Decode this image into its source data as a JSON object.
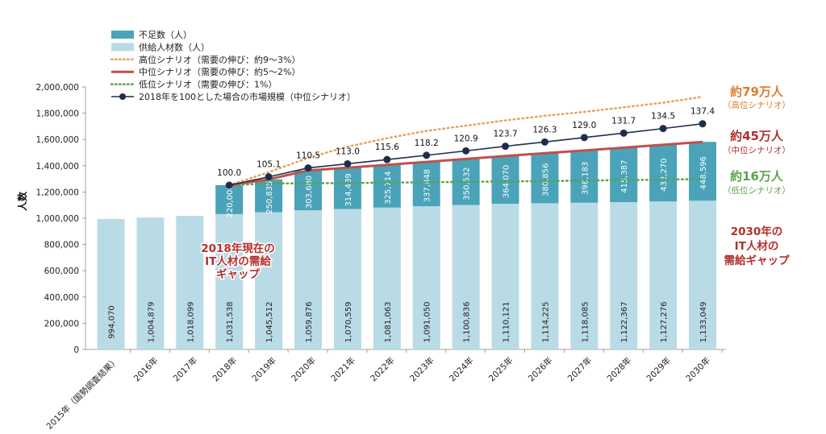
{
  "chart_data": {
    "type": "bar",
    "ylabel": "人数",
    "ylim": [
      0,
      2000000
    ],
    "yticks": [
      "0",
      "200,000",
      "400,000",
      "600,000",
      "800,000",
      "1,000,000",
      "1,200,000",
      "1,400,000",
      "1,600,000",
      "1,800,000",
      "2,000,000"
    ],
    "categories": [
      "2015年（国勢調査結果）",
      "2016年",
      "2017年",
      "2018年",
      "2019年",
      "2020年",
      "2021年",
      "2022年",
      "2023年",
      "2024年",
      "2025年",
      "2026年",
      "2027年",
      "2028年",
      "2029年",
      "2030年"
    ],
    "supply": {
      "name": "供給人材数（人）",
      "color": "#b9dbe6",
      "values": [
        994070,
        1004879,
        1018099,
        1031538,
        1045512,
        1059876,
        1070559,
        1081063,
        1091050,
        1100836,
        1110121,
        1114225,
        1118085,
        1122367,
        1127276,
        1133049
      ],
      "labels": [
        "994,070",
        "1,004,879",
        "1,018,099",
        "1,031,538",
        "1,045,512",
        "1,059,876",
        "1,070,559",
        "1,081,063",
        "1,091,050",
        "1,100,836",
        "1,110,121",
        "1,114,225",
        "1,118,085",
        "1,122,367",
        "1,127,276",
        "1,133,049"
      ]
    },
    "shortage": {
      "name": "不足数（人）",
      "color": "#4aa3b8",
      "values": [
        null,
        null,
        null,
        220000,
        250835,
        303680,
        314439,
        325714,
        337848,
        350532,
        364070,
        380856,
        398183,
        415387,
        432270,
        448596
      ],
      "labels": [
        "",
        "",
        "",
        "220,000",
        "250,835",
        "303,680",
        "314,439",
        "325,714",
        "337,848",
        "350,532",
        "364,070",
        "380,856",
        "398,183",
        "415,387",
        "432,270",
        "448,596"
      ]
    },
    "scenario_high": {
      "name": "高位シナリオ（需要の伸び：約9～3%）",
      "color": "#e8a060",
      "values": [
        null,
        null,
        null,
        1251538,
        1350000,
        1460000,
        1545000,
        1610000,
        1665000,
        1705000,
        1745000,
        1780000,
        1810000,
        1845000,
        1880000,
        1925000
      ]
    },
    "scenario_mid": {
      "name": "中位シナリオ（需要の伸び：約5～2%）",
      "color": "#c0504d",
      "values": [
        null,
        null,
        null,
        1251538,
        1296347,
        1363556,
        1384998,
        1406777,
        1428898,
        1451368,
        1474191,
        1495081,
        1516268,
        1537754,
        1559546,
        1581645
      ]
    },
    "scenario_low": {
      "name": "低位シナリオ（需要の伸び：1%）",
      "color": "#5aa34a",
      "values": [
        null,
        null,
        null,
        1251538,
        1264053,
        1266000,
        1268000,
        1271000,
        1274000,
        1277000,
        1280000,
        1283000,
        1287000,
        1290000,
        1294000,
        1298000
      ]
    },
    "market": {
      "name": "2018年を100とした場合の市場規模（中位シナリオ）",
      "color": "#1f2d4d",
      "index_labels": [
        null,
        null,
        null,
        "100.0",
        "105.1",
        "110.5",
        "113.0",
        "115.6",
        "118.2",
        "120.9",
        "123.7",
        "126.3",
        "129.0",
        "131.7",
        "134.5",
        "137.4"
      ]
    },
    "annotations": {
      "high_big": "約79万人",
      "high_small": "（高位シナリオ）",
      "mid_big": "約45万人",
      "mid_small": "（中位シナリオ）",
      "low_big": "約16万人",
      "low_small": "（低位シナリオ）",
      "gap2018": [
        "2018年現在の",
        "IT人材の需給",
        "ギャップ"
      ],
      "gap2030": [
        "2030年の",
        "IT人材の",
        "需給ギャップ"
      ]
    }
  }
}
